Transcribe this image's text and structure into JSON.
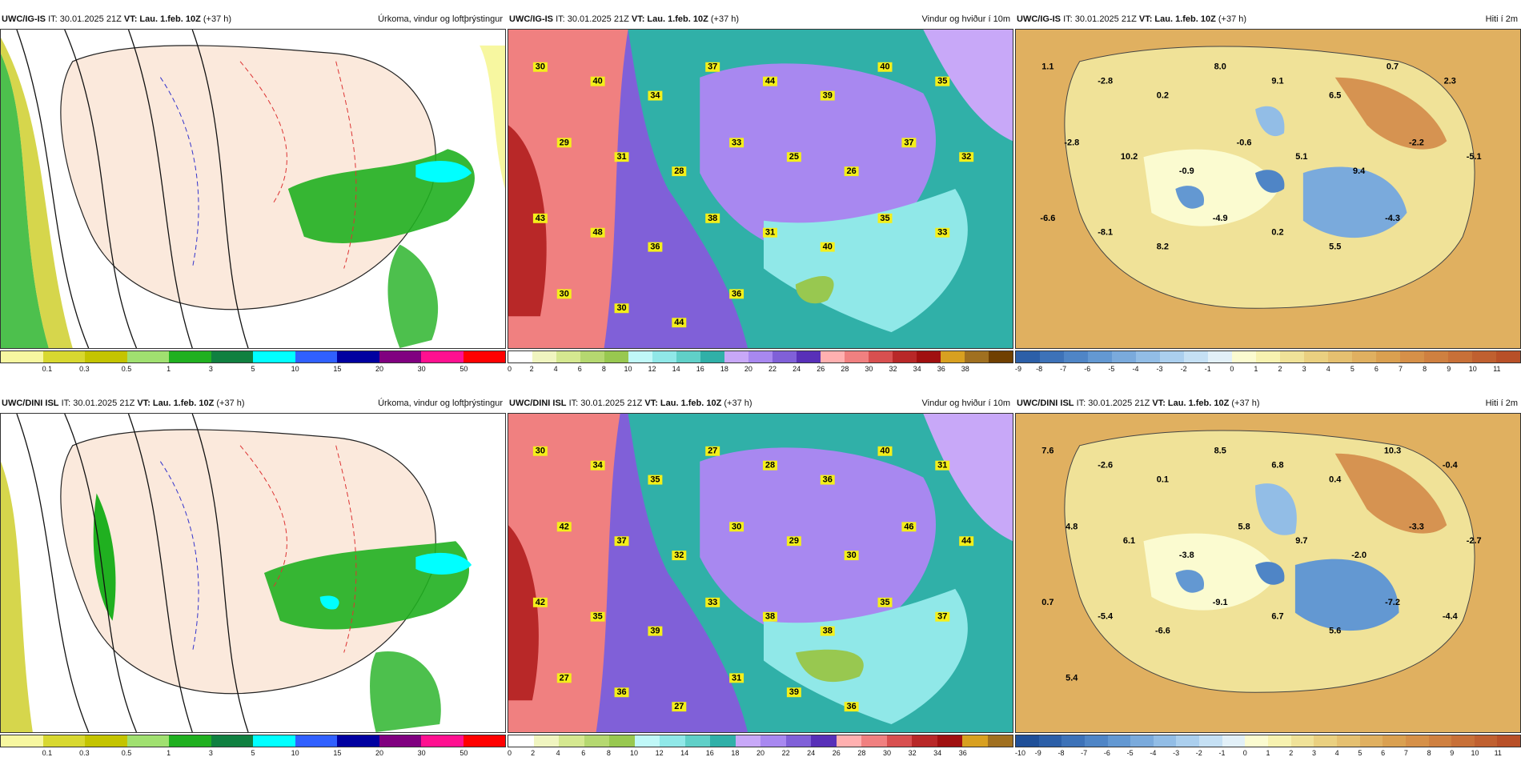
{
  "rows": [
    {
      "model": "UWC/IG-IS",
      "it": "IT: 30.01.2025 21Z",
      "vt": "VT: Lau. 1.feb. 10Z",
      "offset": "(+37 h)",
      "panels": {
        "precip": {
          "title": "Úrkoma, vindur og loftþrýstingur",
          "ticks": [
            "0.1",
            "0.3",
            "0.5",
            "1",
            "3",
            "5",
            "10",
            "15",
            "20",
            "30",
            "50"
          ],
          "colors": [
            "#f7f7a0",
            "#d8d830",
            "#c4c400",
            "#a0e070",
            "#20b020",
            "#108040",
            "#00ffff",
            "#3060ff",
            "#0000a0",
            "#800080",
            "#ff1090",
            "#ff0000"
          ]
        },
        "wind": {
          "title": "Vindur og hviður í 10m",
          "ticks": [
            "0",
            "2",
            "4",
            "6",
            "8",
            "10",
            "12",
            "14",
            "16",
            "18",
            "20",
            "22",
            "24",
            "26",
            "28",
            "30",
            "32",
            "34",
            "36",
            "38"
          ],
          "colors": [
            "#ffffff",
            "#f0f5c0",
            "#d5e890",
            "#b5d870",
            "#98c850",
            "#c0f8f8",
            "#90e8e8",
            "#60d0c8",
            "#30b0a8",
            "#c8a8f8",
            "#a888f0",
            "#8060d8",
            "#5830b8",
            "#ffb0b0",
            "#f08080",
            "#d85050",
            "#b82828",
            "#a01010",
            "#d8a020",
            "#a07020",
            "#704000"
          ],
          "labels": [
            "30",
            "40",
            "34",
            "37",
            "44",
            "39",
            "40",
            "35",
            "29",
            "31",
            "28",
            "33",
            "25",
            "26",
            "37",
            "32",
            "43",
            "48",
            "36",
            "38",
            "31",
            "40",
            "35",
            "33",
            "30",
            "30",
            "44",
            "36"
          ]
        },
        "temp": {
          "title": "Hiti í 2m",
          "ticks": [
            "-9",
            "-8",
            "-7",
            "-6",
            "-5",
            "-4",
            "-3",
            "-2",
            "-1",
            "0",
            "1",
            "2",
            "3",
            "4",
            "5",
            "6",
            "7",
            "8",
            "9",
            "10",
            "11"
          ],
          "colors": [
            "#2c5fa8",
            "#3d72b8",
            "#4f85c6",
            "#6398d2",
            "#7aaadc",
            "#92bde6",
            "#abcfee",
            "#c5e0f4",
            "#e2f0f8",
            "#fbfbd0",
            "#f7f2b0",
            "#f0e298",
            "#ead080",
            "#e5c070",
            "#e0b060",
            "#daa050",
            "#d69048",
            "#cf8040",
            "#c87038",
            "#c06030",
            "#b85028"
          ],
          "labels": [
            "1.1",
            "-2.8",
            "0.2",
            "8.0",
            "9.1",
            "6.5",
            "0.7",
            "2.3",
            "-2.8",
            "10.2",
            "-0.9",
            "-0.6",
            "5.1",
            "9.4",
            "-2.2",
            "-5.1",
            "-6.6",
            "-8.1",
            "8.2",
            "-4.9",
            "0.2",
            "5.5",
            "-4.3"
          ]
        }
      }
    },
    {
      "model": "UWC/DINI ISL",
      "it": "IT: 30.01.2025 21Z",
      "vt": "VT: Lau. 1.feb. 10Z",
      "offset": "(+37 h)",
      "panels": {
        "precip": {
          "title": "Úrkoma, vindur og loftþrýstingur",
          "ticks": [
            "0.1",
            "0.3",
            "0.5",
            "1",
            "3",
            "5",
            "10",
            "15",
            "20",
            "30",
            "50"
          ],
          "colors": [
            "#f7f7a0",
            "#d8d830",
            "#c4c400",
            "#a0e070",
            "#20b020",
            "#108040",
            "#00ffff",
            "#3060ff",
            "#0000a0",
            "#800080",
            "#ff1090",
            "#ff0000"
          ]
        },
        "wind": {
          "title": "Vindur og hviður í 10m",
          "ticks": [
            "0",
            "2",
            "4",
            "6",
            "8",
            "10",
            "12",
            "14",
            "16",
            "18",
            "20",
            "22",
            "24",
            "26",
            "28",
            "30",
            "32",
            "34",
            "36"
          ],
          "colors": [
            "#ffffff",
            "#f0f5c0",
            "#d5e890",
            "#b5d870",
            "#98c850",
            "#c0f8f8",
            "#90e8e8",
            "#60d0c8",
            "#30b0a8",
            "#c8a8f8",
            "#a888f0",
            "#8060d8",
            "#5830b8",
            "#ffb0b0",
            "#f08080",
            "#d85050",
            "#b82828",
            "#a01010",
            "#d8a020",
            "#a07020"
          ],
          "labels": [
            "30",
            "34",
            "35",
            "27",
            "28",
            "36",
            "40",
            "31",
            "42",
            "37",
            "32",
            "30",
            "29",
            "30",
            "46",
            "44",
            "42",
            "35",
            "39",
            "33",
            "38",
            "38",
            "35",
            "37",
            "27",
            "36",
            "27",
            "31",
            "39",
            "36"
          ]
        },
        "temp": {
          "title": "Hiti í 2m",
          "ticks": [
            "-10",
            "-9",
            "-8",
            "-7",
            "-6",
            "-5",
            "-4",
            "-3",
            "-2",
            "-1",
            "0",
            "1",
            "2",
            "3",
            "4",
            "5",
            "6",
            "7",
            "8",
            "9",
            "10",
            "11"
          ],
          "colors": [
            "#1f4f98",
            "#2c5fa8",
            "#3d72b8",
            "#4f85c6",
            "#6398d2",
            "#7aaadc",
            "#92bde6",
            "#abcfee",
            "#c5e0f4",
            "#e2f0f8",
            "#fbfbd0",
            "#f7f2b0",
            "#f0e298",
            "#ead080",
            "#e5c070",
            "#e0b060",
            "#daa050",
            "#d69048",
            "#cf8040",
            "#c87038",
            "#c06030",
            "#b85028"
          ],
          "labels": [
            "7.6",
            "-2.6",
            "0.1",
            "8.5",
            "6.8",
            "0.4",
            "10.3",
            "-0.4",
            "4.8",
            "6.1",
            "-3.8",
            "5.8",
            "9.7",
            "-2.0",
            "-3.3",
            "-2.7",
            "0.7",
            "-5.4",
            "-6.6",
            "-9.1",
            "6.7",
            "5.6",
            "-7.2",
            "-4.4",
            "5.4"
          ]
        }
      }
    }
  ]
}
